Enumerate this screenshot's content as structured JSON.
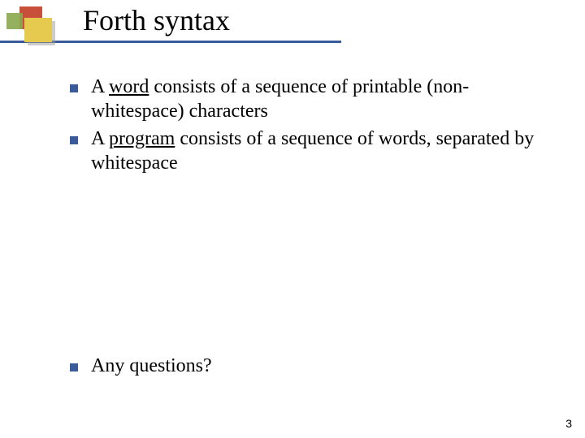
{
  "slide": {
    "title": "Forth syntax",
    "page_number": "3",
    "bullets": [
      {
        "pre": "A ",
        "underlined": "word",
        "post": " consists of a sequence of printable (non-whitespace) characters"
      },
      {
        "pre": "A ",
        "underlined": "program",
        "post": " consists of a sequence of words, separated by whitespace"
      },
      {
        "pre": "",
        "underlined": "",
        "post": "Any questions?"
      }
    ],
    "colors": {
      "accent": "#3a5a99",
      "red": "#c84f3a",
      "yellow": "#e6c94f",
      "green": "#8aa84f",
      "background": "#ffffff"
    }
  }
}
